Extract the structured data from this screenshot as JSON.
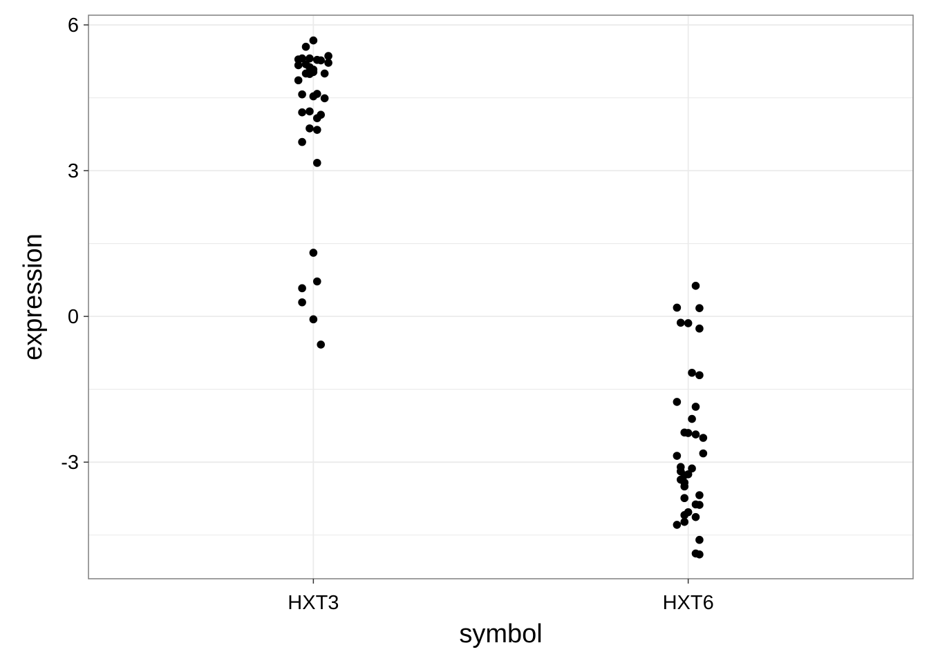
{
  "chart_data": {
    "type": "scatter",
    "xlabel": "symbol",
    "ylabel": "expression",
    "categories": [
      "HXT3",
      "HXT6"
    ],
    "y_ticks": [
      -3,
      0,
      3,
      6
    ],
    "ylim": [
      -5.4,
      6.2
    ],
    "grid": true,
    "colors": {
      "point": "#000000",
      "grid": "#ebebeb",
      "border": "#7f7f7f"
    },
    "points": [
      {
        "category": "HXT3",
        "jitter": 0.0,
        "y": 5.68
      },
      {
        "category": "HXT3",
        "jitter": -0.02,
        "y": 5.55
      },
      {
        "category": "HXT3",
        "jitter": -0.03,
        "y": 5.31
      },
      {
        "category": "HXT3",
        "jitter": 0.04,
        "y": 5.36
      },
      {
        "category": "HXT3",
        "jitter": -0.04,
        "y": 5.29
      },
      {
        "category": "HXT3",
        "jitter": -0.01,
        "y": 5.31
      },
      {
        "category": "HXT3",
        "jitter": 0.01,
        "y": 5.28
      },
      {
        "category": "HXT3",
        "jitter": 0.02,
        "y": 5.27
      },
      {
        "category": "HXT3",
        "jitter": 0.04,
        "y": 5.22
      },
      {
        "category": "HXT3",
        "jitter": -0.04,
        "y": 5.17
      },
      {
        "category": "HXT3",
        "jitter": -0.02,
        "y": 5.19
      },
      {
        "category": "HXT3",
        "jitter": -0.01,
        "y": 5.13
      },
      {
        "category": "HXT3",
        "jitter": 0.0,
        "y": 5.08
      },
      {
        "category": "HXT3",
        "jitter": -0.02,
        "y": 5.0
      },
      {
        "category": "HXT3",
        "jitter": -0.01,
        "y": 4.99
      },
      {
        "category": "HXT3",
        "jitter": 0.0,
        "y": 5.03
      },
      {
        "category": "HXT3",
        "jitter": 0.03,
        "y": 5.0
      },
      {
        "category": "HXT3",
        "jitter": -0.04,
        "y": 4.86
      },
      {
        "category": "HXT3",
        "jitter": -0.03,
        "y": 4.57
      },
      {
        "category": "HXT3",
        "jitter": 0.01,
        "y": 4.58
      },
      {
        "category": "HXT3",
        "jitter": 0.0,
        "y": 4.53
      },
      {
        "category": "HXT3",
        "jitter": 0.03,
        "y": 4.49
      },
      {
        "category": "HXT3",
        "jitter": -0.03,
        "y": 4.2
      },
      {
        "category": "HXT3",
        "jitter": -0.01,
        "y": 4.22
      },
      {
        "category": "HXT3",
        "jitter": 0.02,
        "y": 4.15
      },
      {
        "category": "HXT3",
        "jitter": 0.01,
        "y": 4.08
      },
      {
        "category": "HXT3",
        "jitter": -0.01,
        "y": 3.87
      },
      {
        "category": "HXT3",
        "jitter": 0.01,
        "y": 3.84
      },
      {
        "category": "HXT3",
        "jitter": -0.03,
        "y": 3.59
      },
      {
        "category": "HXT3",
        "jitter": 0.01,
        "y": 3.16
      },
      {
        "category": "HXT3",
        "jitter": 0.0,
        "y": 1.31
      },
      {
        "category": "HXT3",
        "jitter": 0.01,
        "y": 0.72
      },
      {
        "category": "HXT3",
        "jitter": -0.03,
        "y": 0.58
      },
      {
        "category": "HXT3",
        "jitter": -0.03,
        "y": 0.29
      },
      {
        "category": "HXT3",
        "jitter": 0.0,
        "y": -0.06
      },
      {
        "category": "HXT3",
        "jitter": 0.02,
        "y": -0.58
      },
      {
        "category": "HXT6",
        "jitter": 0.02,
        "y": 0.63
      },
      {
        "category": "HXT6",
        "jitter": -0.03,
        "y": 0.18
      },
      {
        "category": "HXT6",
        "jitter": 0.03,
        "y": 0.17
      },
      {
        "category": "HXT6",
        "jitter": -0.02,
        "y": -0.13
      },
      {
        "category": "HXT6",
        "jitter": 0.0,
        "y": -0.14
      },
      {
        "category": "HXT6",
        "jitter": 0.03,
        "y": -0.25
      },
      {
        "category": "HXT6",
        "jitter": 0.01,
        "y": -1.16
      },
      {
        "category": "HXT6",
        "jitter": 0.03,
        "y": -1.21
      },
      {
        "category": "HXT6",
        "jitter": -0.03,
        "y": -1.76
      },
      {
        "category": "HXT6",
        "jitter": 0.02,
        "y": -1.86
      },
      {
        "category": "HXT6",
        "jitter": 0.01,
        "y": -2.11
      },
      {
        "category": "HXT6",
        "jitter": -0.01,
        "y": -2.39
      },
      {
        "category": "HXT6",
        "jitter": 0.0,
        "y": -2.4
      },
      {
        "category": "HXT6",
        "jitter": 0.02,
        "y": -2.43
      },
      {
        "category": "HXT6",
        "jitter": 0.04,
        "y": -2.5
      },
      {
        "category": "HXT6",
        "jitter": 0.04,
        "y": -2.82
      },
      {
        "category": "HXT6",
        "jitter": -0.03,
        "y": -2.87
      },
      {
        "category": "HXT6",
        "jitter": -0.02,
        "y": -3.1
      },
      {
        "category": "HXT6",
        "jitter": 0.01,
        "y": -3.13
      },
      {
        "category": "HXT6",
        "jitter": -0.02,
        "y": -3.19
      },
      {
        "category": "HXT6",
        "jitter": 0.0,
        "y": -3.25
      },
      {
        "category": "HXT6",
        "jitter": -0.01,
        "y": -3.27
      },
      {
        "category": "HXT6",
        "jitter": -0.02,
        "y": -3.36
      },
      {
        "category": "HXT6",
        "jitter": -0.01,
        "y": -3.42
      },
      {
        "category": "HXT6",
        "jitter": -0.01,
        "y": -3.5
      },
      {
        "category": "HXT6",
        "jitter": 0.03,
        "y": -3.68
      },
      {
        "category": "HXT6",
        "jitter": -0.01,
        "y": -3.74
      },
      {
        "category": "HXT6",
        "jitter": 0.02,
        "y": -3.87
      },
      {
        "category": "HXT6",
        "jitter": 0.03,
        "y": -3.88
      },
      {
        "category": "HXT6",
        "jitter": 0.0,
        "y": -4.03
      },
      {
        "category": "HXT6",
        "jitter": -0.01,
        "y": -4.09
      },
      {
        "category": "HXT6",
        "jitter": 0.02,
        "y": -4.13
      },
      {
        "category": "HXT6",
        "jitter": -0.01,
        "y": -4.23
      },
      {
        "category": "HXT6",
        "jitter": -0.03,
        "y": -4.29
      },
      {
        "category": "HXT6",
        "jitter": 0.03,
        "y": -4.6
      },
      {
        "category": "HXT6",
        "jitter": 0.02,
        "y": -4.88
      },
      {
        "category": "HXT6",
        "jitter": 0.03,
        "y": -4.9
      }
    ]
  }
}
